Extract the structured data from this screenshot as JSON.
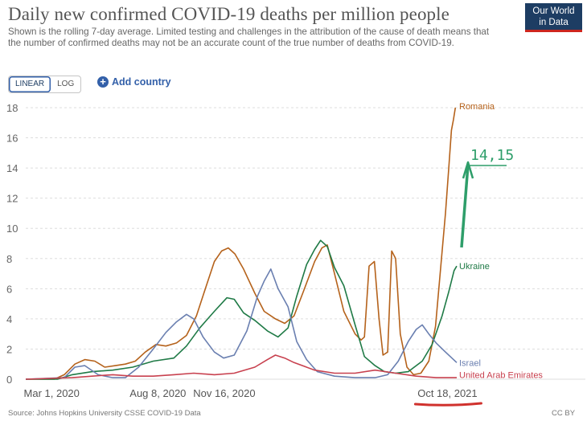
{
  "header": {
    "title": "Daily new confirmed COVID-19 deaths per million people",
    "subtitle": "Shown is the rolling 7-day average. Limited testing and challenges in the attribution of the cause of death means that the number of confirmed deaths may not be an accurate count of the true number of deaths from COVID-19.",
    "logo_line1": "Our World",
    "logo_line2": "in Data"
  },
  "controls": {
    "linear_label": "LINEAR",
    "log_label": "LOG",
    "add_country_label": "Add country"
  },
  "footer": {
    "source": "Source: Johns Hopkins University CSSE COVID-19 Data",
    "license": "CC BY"
  },
  "annotation": {
    "text": "14,15",
    "color": "#2e9e6a"
  },
  "colors": {
    "highlight_underline": "#d0312d",
    "grid": "#dddddd"
  },
  "chart_data": {
    "type": "line",
    "ylabel": "",
    "xlabel": "",
    "ylim": [
      0,
      18
    ],
    "yticks": [
      0,
      2,
      4,
      6,
      8,
      10,
      12,
      14,
      16,
      18
    ],
    "xlim": [
      "2020-01-22",
      "2021-11-01"
    ],
    "xticks": [
      {
        "date": "2020-03-01",
        "label": "Mar 1, 2020"
      },
      {
        "date": "2020-08-08",
        "label": "Aug 8, 2020"
      },
      {
        "date": "2020-11-16",
        "label": "Nov 16, 2020"
      },
      {
        "date": "2021-10-18",
        "label": "Oct 18, 2021"
      }
    ],
    "grid": "horizontal",
    "legend": "line-end labels",
    "series": [
      {
        "name": "Romania",
        "color": "#b5621b",
        "points": [
          [
            "2020-01-22",
            0
          ],
          [
            "2020-03-05",
            0
          ],
          [
            "2020-03-20",
            0.3
          ],
          [
            "2020-04-05",
            1.0
          ],
          [
            "2020-04-20",
            1.3
          ],
          [
            "2020-05-05",
            1.2
          ],
          [
            "2020-05-20",
            0.8
          ],
          [
            "2020-06-05",
            0.9
          ],
          [
            "2020-06-20",
            1.0
          ],
          [
            "2020-07-05",
            1.2
          ],
          [
            "2020-07-20",
            1.8
          ],
          [
            "2020-08-05",
            2.3
          ],
          [
            "2020-08-20",
            2.2
          ],
          [
            "2020-09-05",
            2.4
          ],
          [
            "2020-09-20",
            2.9
          ],
          [
            "2020-10-05",
            4.2
          ],
          [
            "2020-10-20",
            6.2
          ],
          [
            "2020-11-01",
            7.8
          ],
          [
            "2020-11-12",
            8.5
          ],
          [
            "2020-11-22",
            8.7
          ],
          [
            "2020-12-02",
            8.3
          ],
          [
            "2020-12-15",
            7.3
          ],
          [
            "2021-01-01",
            5.7
          ],
          [
            "2021-01-15",
            4.5
          ],
          [
            "2021-02-01",
            4.0
          ],
          [
            "2021-02-15",
            3.7
          ],
          [
            "2021-03-01",
            4.2
          ],
          [
            "2021-03-15",
            5.8
          ],
          [
            "2021-04-01",
            7.8
          ],
          [
            "2021-04-12",
            8.7
          ],
          [
            "2021-04-20",
            8.9
          ],
          [
            "2021-05-01",
            7.0
          ],
          [
            "2021-05-15",
            4.5
          ],
          [
            "2021-06-01",
            3.0
          ],
          [
            "2021-06-10",
            2.6
          ],
          [
            "2021-06-15",
            2.8
          ],
          [
            "2021-06-22",
            7.5
          ],
          [
            "2021-06-30",
            7.8
          ],
          [
            "2021-07-07",
            4.0
          ],
          [
            "2021-07-13",
            1.6
          ],
          [
            "2021-07-20",
            1.8
          ],
          [
            "2021-07-26",
            8.5
          ],
          [
            "2021-08-01",
            8.0
          ],
          [
            "2021-08-08",
            3.0
          ],
          [
            "2021-08-18",
            0.8
          ],
          [
            "2021-08-28",
            0.3
          ],
          [
            "2021-09-08",
            0.4
          ],
          [
            "2021-09-20",
            1.2
          ],
          [
            "2021-09-30",
            3.5
          ],
          [
            "2021-10-08",
            7.5
          ],
          [
            "2021-10-15",
            11.0
          ],
          [
            "2021-10-20",
            14.0
          ],
          [
            "2021-10-24",
            16.5
          ],
          [
            "2021-10-27",
            17.2
          ],
          [
            "2021-10-30",
            18.0
          ]
        ]
      },
      {
        "name": "Ukraine",
        "color": "#1f7a46",
        "points": [
          [
            "2020-01-22",
            0
          ],
          [
            "2020-03-10",
            0
          ],
          [
            "2020-04-01",
            0.3
          ],
          [
            "2020-05-01",
            0.5
          ],
          [
            "2020-06-01",
            0.6
          ],
          [
            "2020-07-01",
            0.8
          ],
          [
            "2020-08-01",
            1.2
          ],
          [
            "2020-09-01",
            1.4
          ],
          [
            "2020-09-20",
            2.2
          ],
          [
            "2020-10-10",
            3.4
          ],
          [
            "2020-11-01",
            4.5
          ],
          [
            "2020-11-20",
            5.4
          ],
          [
            "2020-12-01",
            5.3
          ],
          [
            "2020-12-15",
            4.4
          ],
          [
            "2021-01-01",
            3.9
          ],
          [
            "2021-01-20",
            3.2
          ],
          [
            "2021-02-05",
            2.8
          ],
          [
            "2021-02-20",
            3.4
          ],
          [
            "2021-03-05",
            5.5
          ],
          [
            "2021-03-20",
            7.6
          ],
          [
            "2021-04-01",
            8.6
          ],
          [
            "2021-04-10",
            9.2
          ],
          [
            "2021-04-20",
            8.8
          ],
          [
            "2021-05-01",
            7.4
          ],
          [
            "2021-05-15",
            6.2
          ],
          [
            "2021-06-01",
            3.6
          ],
          [
            "2021-06-15",
            1.5
          ],
          [
            "2021-07-01",
            0.9
          ],
          [
            "2021-07-15",
            0.5
          ],
          [
            "2021-08-01",
            0.4
          ],
          [
            "2021-08-20",
            0.5
          ],
          [
            "2021-09-10",
            1.2
          ],
          [
            "2021-09-25",
            2.3
          ],
          [
            "2021-10-10",
            4.2
          ],
          [
            "2021-10-20",
            5.8
          ],
          [
            "2021-10-28",
            7.2
          ],
          [
            "2021-11-01",
            7.5
          ]
        ]
      },
      {
        "name": "Israel",
        "color": "#6a7fb0",
        "points": [
          [
            "2020-01-22",
            0
          ],
          [
            "2020-03-20",
            0.1
          ],
          [
            "2020-04-05",
            0.8
          ],
          [
            "2020-04-20",
            0.9
          ],
          [
            "2020-05-10",
            0.3
          ],
          [
            "2020-06-01",
            0.1
          ],
          [
            "2020-06-20",
            0.1
          ],
          [
            "2020-07-10",
            0.8
          ],
          [
            "2020-08-01",
            2.0
          ],
          [
            "2020-08-20",
            3.1
          ],
          [
            "2020-09-05",
            3.8
          ],
          [
            "2020-09-20",
            4.3
          ],
          [
            "2020-10-01",
            4.0
          ],
          [
            "2020-10-15",
            2.8
          ],
          [
            "2020-11-01",
            1.8
          ],
          [
            "2020-11-15",
            1.4
          ],
          [
            "2020-12-01",
            1.6
          ],
          [
            "2020-12-20",
            3.2
          ],
          [
            "2021-01-05",
            5.5
          ],
          [
            "2021-01-15",
            6.5
          ],
          [
            "2021-01-25",
            7.3
          ],
          [
            "2021-02-05",
            6.0
          ],
          [
            "2021-02-20",
            4.8
          ],
          [
            "2021-03-05",
            2.5
          ],
          [
            "2021-03-20",
            1.3
          ],
          [
            "2021-04-05",
            0.5
          ],
          [
            "2021-05-01",
            0.2
          ],
          [
            "2021-06-01",
            0.1
          ],
          [
            "2021-07-01",
            0.1
          ],
          [
            "2021-07-20",
            0.3
          ],
          [
            "2021-08-05",
            1.2
          ],
          [
            "2021-08-20",
            2.5
          ],
          [
            "2021-09-01",
            3.3
          ],
          [
            "2021-09-10",
            3.6
          ],
          [
            "2021-09-20",
            3.0
          ],
          [
            "2021-10-01",
            2.4
          ],
          [
            "2021-10-15",
            1.8
          ],
          [
            "2021-11-01",
            1.1
          ]
        ]
      },
      {
        "name": "United Arab Emirates",
        "color": "#c8414f",
        "points": [
          [
            "2020-01-22",
            0
          ],
          [
            "2020-04-01",
            0.1
          ],
          [
            "2020-05-01",
            0.2
          ],
          [
            "2020-06-01",
            0.3
          ],
          [
            "2020-07-01",
            0.2
          ],
          [
            "2020-08-01",
            0.2
          ],
          [
            "2020-09-01",
            0.3
          ],
          [
            "2020-10-01",
            0.4
          ],
          [
            "2020-11-01",
            0.3
          ],
          [
            "2020-12-01",
            0.4
          ],
          [
            "2021-01-01",
            0.8
          ],
          [
            "2021-01-20",
            1.3
          ],
          [
            "2021-02-01",
            1.6
          ],
          [
            "2021-02-15",
            1.4
          ],
          [
            "2021-03-01",
            1.1
          ],
          [
            "2021-04-01",
            0.6
          ],
          [
            "2021-05-01",
            0.4
          ],
          [
            "2021-06-01",
            0.4
          ],
          [
            "2021-07-01",
            0.6
          ],
          [
            "2021-08-01",
            0.4
          ],
          [
            "2021-09-01",
            0.2
          ],
          [
            "2021-10-01",
            0.1
          ],
          [
            "2021-11-01",
            0.1
          ]
        ]
      }
    ]
  }
}
